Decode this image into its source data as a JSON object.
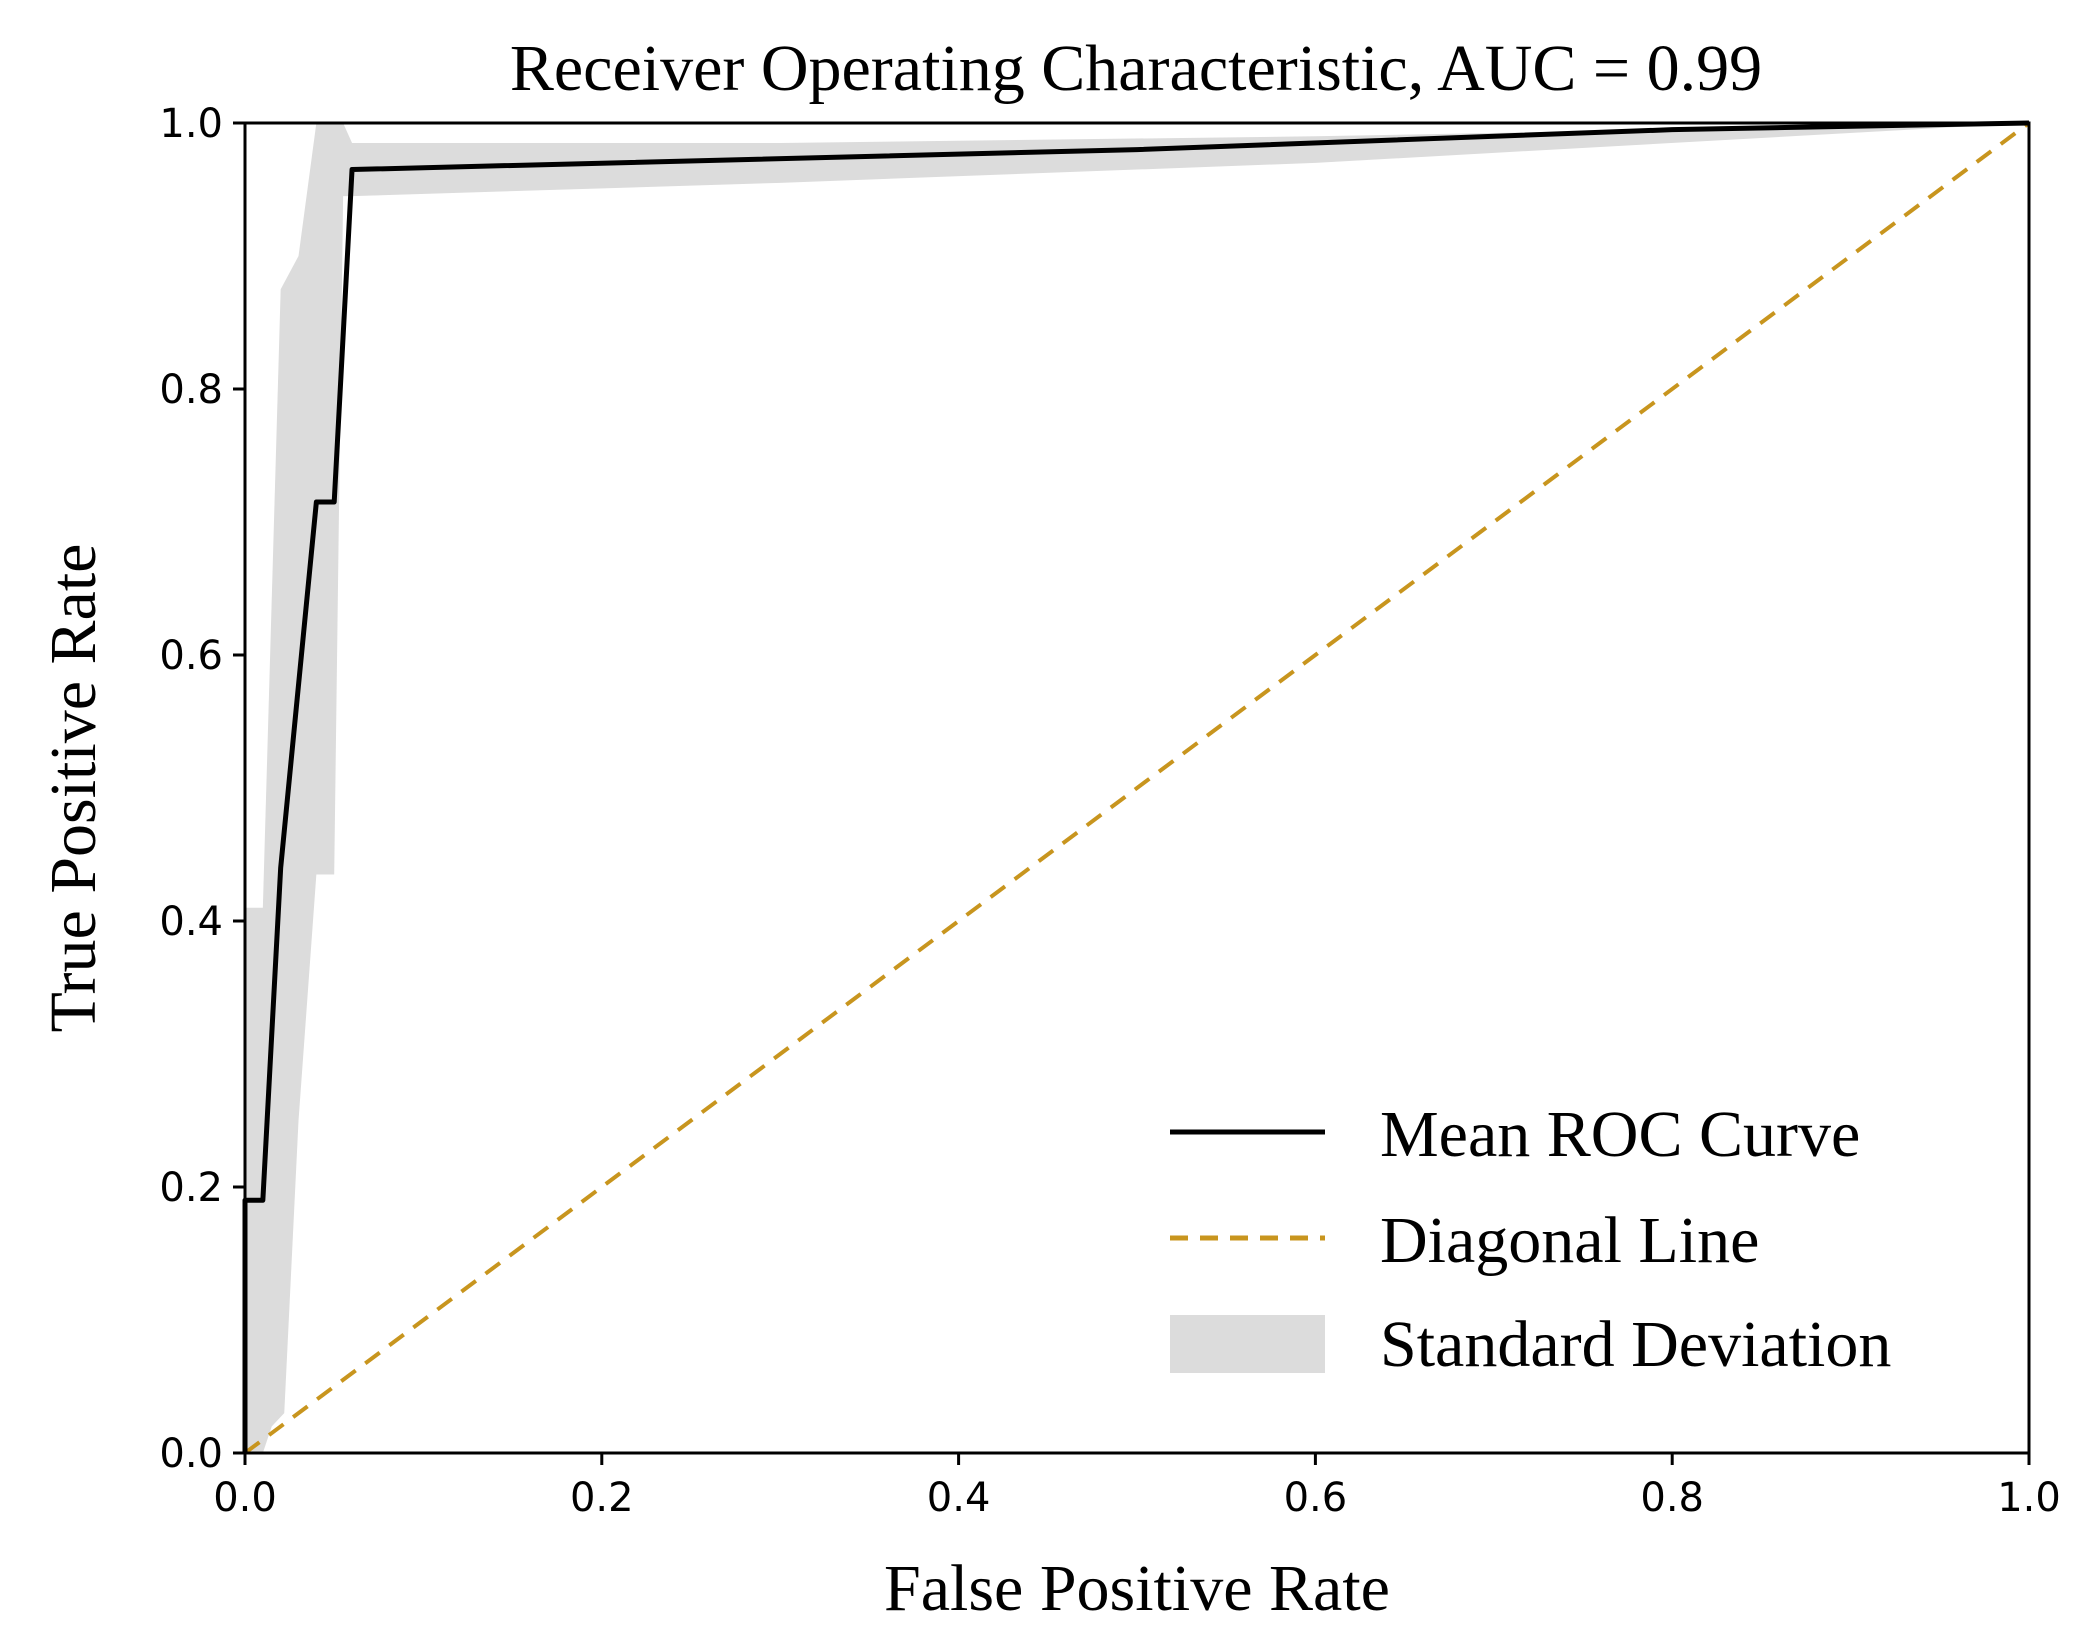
{
  "chart_data": {
    "type": "line",
    "title": "Receiver Operating Characteristic, AUC = 0.99",
    "xlabel": "False Positive Rate",
    "ylabel": "True Positive Rate",
    "xlim": [
      0.0,
      1.0
    ],
    "ylim": [
      0.0,
      1.0
    ],
    "xticks": [
      "0.0",
      "0.2",
      "0.4",
      "0.6",
      "0.8",
      "1.0"
    ],
    "yticks": [
      "0.0",
      "0.2",
      "0.4",
      "0.6",
      "0.8",
      "1.0"
    ],
    "grid": false,
    "legend_position": "bottom-right",
    "series": [
      {
        "name": "Mean ROC Curve",
        "style": "solid",
        "color": "#000000",
        "x": [
          0.0,
          0.0,
          0.01,
          0.02,
          0.04,
          0.05,
          0.06,
          0.5,
          0.8,
          1.0
        ],
        "y": [
          0.0,
          0.19,
          0.19,
          0.44,
          0.715,
          0.715,
          0.965,
          0.98,
          0.995,
          1.0
        ]
      },
      {
        "name": "Diagonal Line",
        "style": "dashed",
        "color": "#c8951e",
        "x": [
          0.0,
          1.0
        ],
        "y": [
          0.0,
          1.0
        ]
      }
    ],
    "band": {
      "name": "Standard Deviation",
      "color": "#dcdcdc",
      "upper": {
        "x": [
          0.0,
          0.0,
          0.01,
          0.02,
          0.03,
          0.04,
          0.055,
          0.06,
          0.3,
          0.6,
          1.0
        ],
        "y": [
          0.0,
          0.41,
          0.41,
          0.875,
          0.9,
          1.0,
          1.0,
          0.985,
          0.985,
          0.99,
          1.0
        ]
      },
      "lower": {
        "x": [
          1.0,
          0.6,
          0.3,
          0.06,
          0.055,
          0.05,
          0.05,
          0.04,
          0.03,
          0.022,
          0.015,
          0.01,
          0.0
        ],
        "y": [
          1.0,
          0.97,
          0.955,
          0.945,
          0.945,
          0.435,
          0.435,
          0.435,
          0.25,
          0.03,
          0.02,
          0.0,
          0.0
        ]
      }
    }
  }
}
